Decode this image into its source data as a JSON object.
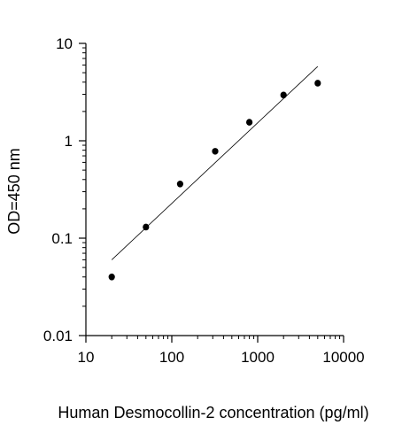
{
  "chart_data": {
    "type": "scatter",
    "title": "",
    "xlabel": "Human Desmocollin-2 concentration (pg/ml)",
    "ylabel": "OD=450 nm",
    "x_scale": "log",
    "y_scale": "log",
    "xlim": [
      10,
      10000
    ],
    "ylim": [
      0.01,
      10
    ],
    "x_ticks": [
      10,
      100,
      1000,
      10000
    ],
    "x_tick_labels": [
      "10",
      "100",
      "1000",
      "10000"
    ],
    "y_ticks": [
      0.01,
      0.1,
      1,
      10
    ],
    "y_tick_labels": [
      "0.01",
      "0.1",
      "1",
      "10"
    ],
    "grid": false,
    "series": [
      {
        "points": [
          {
            "x": 20,
            "y": 0.04
          },
          {
            "x": 50,
            "y": 0.13
          },
          {
            "x": 125,
            "y": 0.36
          },
          {
            "x": 320,
            "y": 0.78
          },
          {
            "x": 800,
            "y": 1.55
          },
          {
            "x": 2000,
            "y": 2.95
          },
          {
            "x": 5000,
            "y": 3.9
          }
        ]
      }
    ],
    "fit_line": [
      {
        "x": 20,
        "y": 0.06
      },
      {
        "x": 5000,
        "y": 5.8
      }
    ]
  }
}
